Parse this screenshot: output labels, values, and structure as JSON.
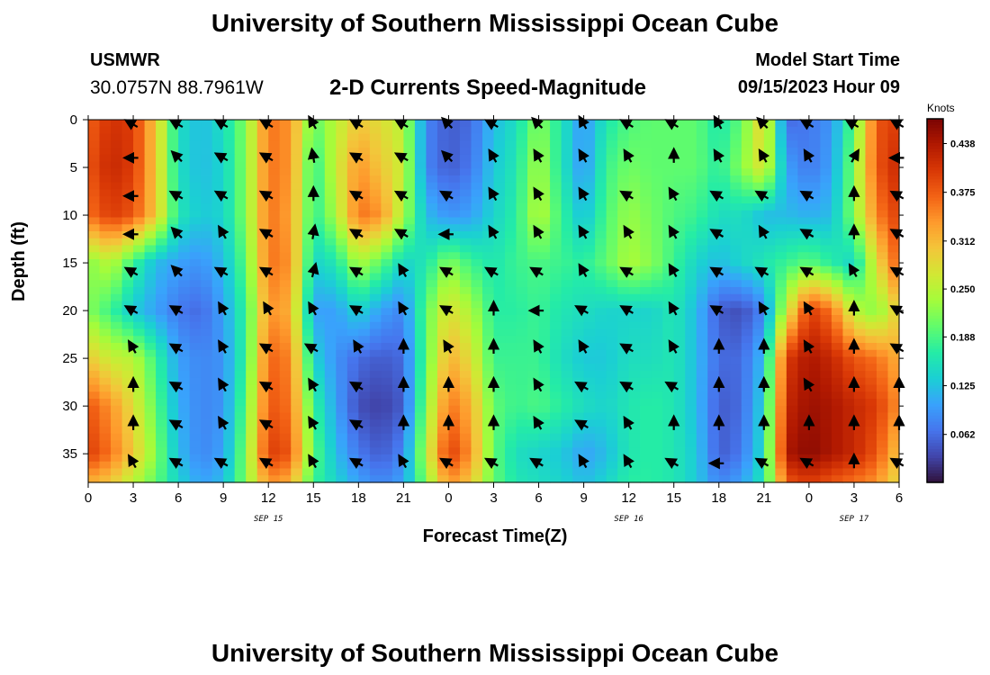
{
  "header": {
    "title": "University of Southern Mississippi Ocean Cube",
    "station": "USMWR",
    "coords": "30.0757N  88.7961W",
    "subtitle": "2-D Currents Speed-Magnitude",
    "model_start_label": "Model Start Time",
    "model_start_value": "09/15/2023 Hour 09"
  },
  "footer": {
    "title": "University of Southern Mississippi Ocean Cube"
  },
  "chart_data": {
    "type": "heatmap",
    "title": "2-D Currents Speed-Magnitude",
    "xlabel": "Forecast Time(Z)",
    "ylabel": "Depth (ft)",
    "colorbar_label": "Knots",
    "xlim": [
      0,
      54
    ],
    "ylim": [
      0,
      38
    ],
    "x_ticks": [
      0,
      3,
      6,
      9,
      12,
      15,
      18,
      21,
      24,
      27,
      30,
      33,
      36,
      39,
      42,
      45,
      48,
      51,
      54
    ],
    "x_tick_labels": [
      "0",
      "3",
      "6",
      "9",
      "12",
      "15",
      "18",
      "21",
      "0",
      "3",
      "6",
      "9",
      "12",
      "15",
      "18",
      "21",
      "0",
      "3",
      "6"
    ],
    "y_ticks": [
      0,
      5,
      10,
      15,
      20,
      25,
      30,
      35
    ],
    "y_tick_labels": [
      "0",
      "5",
      "10",
      "15",
      "20",
      "25",
      "30",
      "35"
    ],
    "date_labels": [
      {
        "x": 12,
        "text": "SEP 15"
      },
      {
        "x": 36,
        "text": "SEP 16"
      },
      {
        "x": 51,
        "text": "SEP 17"
      }
    ],
    "colorbar_ticks": [
      {
        "value": 0.062,
        "label": "0.062"
      },
      {
        "value": 0.125,
        "label": "0.125"
      },
      {
        "value": 0.188,
        "label": "0.188"
      },
      {
        "value": 0.25,
        "label": "0.250"
      },
      {
        "value": 0.312,
        "label": "0.312"
      },
      {
        "value": 0.375,
        "label": "0.375"
      },
      {
        "value": 0.438,
        "label": "0.438"
      }
    ],
    "colorbar_range": [
      0.0,
      0.47
    ],
    "colors": [
      "#30123b",
      "#4145ab",
      "#4675ed",
      "#39a2fc",
      "#1bcfd4",
      "#24eca6",
      "#61fc6c",
      "#a4fc3b",
      "#d1e834",
      "#f3c63a",
      "#fe9b2d",
      "#f36315",
      "#d93806",
      "#b11901",
      "#7a0403"
    ],
    "speed_control_points": {
      "depths": [
        0,
        5,
        10,
        15,
        20,
        25,
        30,
        35,
        38
      ],
      "times": [
        0,
        1.5,
        3,
        4.5,
        6,
        7.5,
        9,
        10.5,
        12,
        13.5,
        15,
        16.5,
        18,
        19.5,
        21,
        22.5,
        24,
        25.5,
        27,
        28.5,
        30,
        31.5,
        33,
        34.5,
        36,
        37.5,
        39,
        40.5,
        42,
        43.5,
        45,
        46.5,
        48,
        49.5,
        51,
        52.5,
        54
      ],
      "values": [
        [
          0.37,
          0.41,
          0.4,
          0.3,
          0.15,
          0.12,
          0.15,
          0.22,
          0.36,
          0.34,
          0.2,
          0.25,
          0.3,
          0.28,
          0.25,
          0.08,
          0.05,
          0.06,
          0.12,
          0.15,
          0.22,
          0.16,
          0.09,
          0.16,
          0.19,
          0.2,
          0.2,
          0.2,
          0.16,
          0.2,
          0.3,
          0.06,
          0.07,
          0.09,
          0.2,
          0.38,
          0.4
        ],
        [
          0.38,
          0.42,
          0.4,
          0.3,
          0.15,
          0.12,
          0.14,
          0.22,
          0.36,
          0.34,
          0.17,
          0.26,
          0.34,
          0.3,
          0.26,
          0.08,
          0.05,
          0.07,
          0.13,
          0.16,
          0.24,
          0.16,
          0.09,
          0.18,
          0.21,
          0.2,
          0.2,
          0.2,
          0.17,
          0.22,
          0.28,
          0.1,
          0.07,
          0.1,
          0.22,
          0.38,
          0.42
        ],
        [
          0.36,
          0.4,
          0.38,
          0.3,
          0.16,
          0.13,
          0.14,
          0.22,
          0.36,
          0.33,
          0.17,
          0.24,
          0.36,
          0.34,
          0.24,
          0.12,
          0.09,
          0.1,
          0.14,
          0.17,
          0.25,
          0.18,
          0.12,
          0.19,
          0.23,
          0.21,
          0.19,
          0.18,
          0.15,
          0.15,
          0.12,
          0.12,
          0.11,
          0.12,
          0.22,
          0.35,
          0.4
        ],
        [
          0.22,
          0.25,
          0.18,
          0.12,
          0.1,
          0.09,
          0.12,
          0.2,
          0.36,
          0.34,
          0.14,
          0.16,
          0.24,
          0.2,
          0.14,
          0.16,
          0.22,
          0.18,
          0.16,
          0.18,
          0.19,
          0.18,
          0.17,
          0.2,
          0.24,
          0.22,
          0.18,
          0.14,
          0.12,
          0.14,
          0.16,
          0.18,
          0.2,
          0.17,
          0.14,
          0.28,
          0.38
        ],
        [
          0.22,
          0.18,
          0.13,
          0.1,
          0.07,
          0.06,
          0.1,
          0.18,
          0.34,
          0.32,
          0.1,
          0.1,
          0.14,
          0.1,
          0.08,
          0.2,
          0.28,
          0.24,
          0.17,
          0.17,
          0.18,
          0.16,
          0.15,
          0.14,
          0.14,
          0.14,
          0.16,
          0.12,
          0.05,
          0.04,
          0.08,
          0.26,
          0.4,
          0.36,
          0.25,
          0.22,
          0.3
        ],
        [
          0.3,
          0.26,
          0.25,
          0.18,
          0.1,
          0.08,
          0.09,
          0.18,
          0.37,
          0.35,
          0.14,
          0.09,
          0.06,
          0.05,
          0.06,
          0.2,
          0.32,
          0.28,
          0.18,
          0.18,
          0.18,
          0.15,
          0.13,
          0.13,
          0.15,
          0.15,
          0.16,
          0.12,
          0.06,
          0.06,
          0.12,
          0.4,
          0.44,
          0.42,
          0.38,
          0.36,
          0.32
        ],
        [
          0.38,
          0.34,
          0.28,
          0.2,
          0.11,
          0.08,
          0.09,
          0.2,
          0.38,
          0.36,
          0.18,
          0.1,
          0.04,
          0.03,
          0.05,
          0.22,
          0.36,
          0.32,
          0.2,
          0.18,
          0.19,
          0.17,
          0.15,
          0.14,
          0.16,
          0.17,
          0.16,
          0.12,
          0.05,
          0.06,
          0.14,
          0.42,
          0.45,
          0.44,
          0.42,
          0.4,
          0.34
        ],
        [
          0.4,
          0.36,
          0.3,
          0.22,
          0.12,
          0.08,
          0.1,
          0.22,
          0.4,
          0.38,
          0.2,
          0.12,
          0.07,
          0.05,
          0.08,
          0.25,
          0.4,
          0.34,
          0.2,
          0.15,
          0.14,
          0.13,
          0.1,
          0.12,
          0.16,
          0.17,
          0.16,
          0.13,
          0.05,
          0.07,
          0.15,
          0.44,
          0.46,
          0.44,
          0.42,
          0.38,
          0.3
        ],
        [
          0.32,
          0.3,
          0.25,
          0.2,
          0.14,
          0.1,
          0.12,
          0.22,
          0.34,
          0.32,
          0.18,
          0.14,
          0.1,
          0.08,
          0.1,
          0.22,
          0.34,
          0.3,
          0.2,
          0.16,
          0.15,
          0.14,
          0.12,
          0.14,
          0.17,
          0.17,
          0.16,
          0.13,
          0.08,
          0.1,
          0.16,
          0.38,
          0.4,
          0.38,
          0.36,
          0.34,
          0.28
        ]
      ]
    },
    "current_vectors": {
      "times": [
        3,
        6,
        9,
        12,
        15,
        18,
        21,
        24,
        27,
        30,
        33,
        36,
        39,
        42,
        45,
        48,
        51,
        54
      ],
      "depths": [
        0.5,
        4,
        8,
        12,
        16,
        20,
        24,
        28,
        32,
        36
      ],
      "directions_deg": [
        [
          300,
          300,
          300,
          300,
          330,
          300,
          300,
          315,
          300,
          315,
          330,
          300,
          300,
          330,
          315,
          300,
          300,
          300
        ],
        [
          270,
          315,
          300,
          300,
          350,
          300,
          300,
          315,
          330,
          330,
          330,
          330,
          0,
          330,
          330,
          330,
          30,
          270
        ],
        [
          270,
          300,
          300,
          300,
          0,
          300,
          300,
          300,
          330,
          330,
          330,
          300,
          330,
          300,
          300,
          300,
          0,
          300
        ],
        [
          270,
          315,
          330,
          300,
          10,
          300,
          300,
          270,
          330,
          330,
          330,
          330,
          330,
          300,
          330,
          300,
          0,
          300
        ],
        [
          300,
          315,
          300,
          300,
          15,
          300,
          330,
          300,
          300,
          300,
          330,
          300,
          330,
          300,
          300,
          300,
          330,
          300
        ],
        [
          300,
          300,
          330,
          330,
          330,
          300,
          330,
          300,
          0,
          270,
          300,
          300,
          330,
          300,
          330,
          330,
          0,
          300
        ],
        [
          330,
          300,
          330,
          300,
          300,
          330,
          0,
          330,
          0,
          330,
          330,
          300,
          330,
          0,
          0,
          330,
          0,
          300
        ],
        [
          0,
          300,
          330,
          300,
          330,
          300,
          0,
          0,
          0,
          330,
          300,
          300,
          300,
          0,
          0,
          330,
          0,
          0
        ],
        [
          0,
          300,
          330,
          300,
          330,
          300,
          0,
          0,
          0,
          330,
          300,
          330,
          0,
          0,
          0,
          0,
          0,
          0
        ],
        [
          330,
          300,
          300,
          300,
          330,
          300,
          330,
          300,
          300,
          300,
          330,
          330,
          300,
          270,
          300,
          300,
          0,
          300
        ]
      ]
    }
  }
}
